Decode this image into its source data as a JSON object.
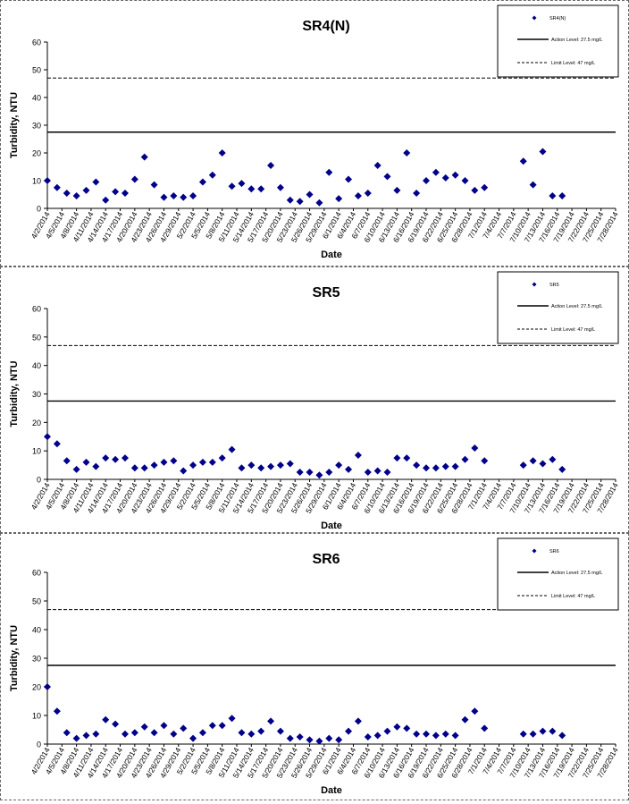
{
  "tick_dates": [
    "4/2/2014",
    "4/5/2014",
    "4/8/2014",
    "4/11/2014",
    "4/14/2014",
    "4/17/2014",
    "4/20/2014",
    "4/23/2014",
    "4/26/2014",
    "4/29/2014",
    "5/2/2014",
    "5/5/2014",
    "5/8/2014",
    "5/11/2014",
    "5/14/2014",
    "5/17/2014",
    "5/20/2014",
    "5/23/2014",
    "5/26/2014",
    "5/29/2014",
    "6/1/2014",
    "6/4/2014",
    "6/7/2014",
    "6/10/2014",
    "6/13/2014",
    "6/16/2014",
    "6/19/2014",
    "6/22/2014",
    "6/25/2014",
    "6/28/2014",
    "7/1/2014",
    "7/4/2014",
    "7/7/2014",
    "7/10/2014",
    "7/13/2014",
    "7/16/2014",
    "7/19/2014",
    "7/22/2014",
    "7/25/2014",
    "7/28/2014"
  ],
  "chart_data": [
    {
      "type": "scatter",
      "title": "SR4(N)",
      "xlabel": "Date",
      "ylabel": "Turbidity, NTU",
      "ylim": [
        0,
        60
      ],
      "yticks": [
        0,
        10,
        20,
        30,
        40,
        50,
        60
      ],
      "grid": false,
      "legend_position": "top-right",
      "legend": {
        "series": "SR4(N)",
        "action": "Action Level: 27.5 mg/L",
        "limit": "Limit Level: 47 mg/L"
      },
      "action_level": 27.5,
      "limit_level": 47,
      "series": [
        {
          "name": "SR4(N)",
          "color": "#00008b",
          "points": [
            [
              "4/2/2014",
              10
            ],
            [
              "4/4/2014",
              7.5
            ],
            [
              "4/6/2014",
              5.5
            ],
            [
              "4/8/2014",
              4.5
            ],
            [
              "4/10/2014",
              6.5
            ],
            [
              "4/12/2014",
              9.5
            ],
            [
              "4/14/2014",
              3
            ],
            [
              "4/16/2014",
              6
            ],
            [
              "4/18/2014",
              5.5
            ],
            [
              "4/20/2014",
              10.5
            ],
            [
              "4/22/2014",
              18.5
            ],
            [
              "4/24/2014",
              8.5
            ],
            [
              "4/26/2014",
              4
            ],
            [
              "4/28/2014",
              4.5
            ],
            [
              "4/30/2014",
              4
            ],
            [
              "5/2/2014",
              4.5
            ],
            [
              "5/4/2014",
              9.5
            ],
            [
              "5/6/2014",
              12
            ],
            [
              "5/8/2014",
              20
            ],
            [
              "5/10/2014",
              8
            ],
            [
              "5/12/2014",
              9
            ],
            [
              "5/14/2014",
              7
            ],
            [
              "5/16/2014",
              7
            ],
            [
              "5/18/2014",
              15.5
            ],
            [
              "5/20/2014",
              7.5
            ],
            [
              "5/22/2014",
              3
            ],
            [
              "5/24/2014",
              2.5
            ],
            [
              "5/26/2014",
              5
            ],
            [
              "5/28/2014",
              2
            ],
            [
              "5/30/2014",
              13
            ],
            [
              "6/1/2014",
              3.5
            ],
            [
              "6/3/2014",
              10.5
            ],
            [
              "6/5/2014",
              4.5
            ],
            [
              "6/7/2014",
              5.5
            ],
            [
              "6/9/2014",
              15.5
            ],
            [
              "6/11/2014",
              11.5
            ],
            [
              "6/13/2014",
              6.5
            ],
            [
              "6/15/2014",
              20
            ],
            [
              "6/17/2014",
              5.5
            ],
            [
              "6/19/2014",
              10
            ],
            [
              "6/21/2014",
              13
            ],
            [
              "6/23/2014",
              11
            ],
            [
              "6/25/2014",
              12
            ],
            [
              "6/27/2014",
              10
            ],
            [
              "6/29/2014",
              6.5
            ],
            [
              "7/1/2014",
              7.5
            ],
            [
              "7/9/2014",
              17
            ],
            [
              "7/11/2014",
              8.5
            ],
            [
              "7/13/2014",
              20.5
            ],
            [
              "7/15/2014",
              4.5
            ],
            [
              "7/17/2014",
              4.5
            ]
          ]
        }
      ]
    },
    {
      "type": "scatter",
      "title": "SR5",
      "xlabel": "Date",
      "ylabel": "Turbidity, NTU",
      "ylim": [
        0,
        60
      ],
      "yticks": [
        0,
        10,
        20,
        30,
        40,
        50,
        60
      ],
      "grid": false,
      "legend_position": "top-right",
      "legend": {
        "series": "SR5",
        "action": "Action Level: 27.5 mg/L",
        "limit": "Limit Level: 47 mg/L"
      },
      "action_level": 27.5,
      "limit_level": 47,
      "series": [
        {
          "name": "SR5",
          "color": "#00008b",
          "points": [
            [
              "4/2/2014",
              15
            ],
            [
              "4/4/2014",
              12.5
            ],
            [
              "4/6/2014",
              6.5
            ],
            [
              "4/8/2014",
              3.5
            ],
            [
              "4/10/2014",
              6
            ],
            [
              "4/12/2014",
              4.5
            ],
            [
              "4/14/2014",
              7.5
            ],
            [
              "4/16/2014",
              7
            ],
            [
              "4/18/2014",
              7.5
            ],
            [
              "4/20/2014",
              4
            ],
            [
              "4/22/2014",
              4
            ],
            [
              "4/24/2014",
              5
            ],
            [
              "4/26/2014",
              6
            ],
            [
              "4/28/2014",
              6.5
            ],
            [
              "4/30/2014",
              3
            ],
            [
              "5/2/2014",
              5
            ],
            [
              "5/4/2014",
              6
            ],
            [
              "5/6/2014",
              6
            ],
            [
              "5/8/2014",
              7.5
            ],
            [
              "5/10/2014",
              10.5
            ],
            [
              "5/12/2014",
              4
            ],
            [
              "5/14/2014",
              5
            ],
            [
              "5/16/2014",
              4
            ],
            [
              "5/18/2014",
              4.5
            ],
            [
              "5/20/2014",
              5
            ],
            [
              "5/22/2014",
              5.5
            ],
            [
              "5/24/2014",
              2.5
            ],
            [
              "5/26/2014",
              2.5
            ],
            [
              "5/28/2014",
              1.5
            ],
            [
              "5/30/2014",
              2.5
            ],
            [
              "6/1/2014",
              5
            ],
            [
              "6/3/2014",
              3.5
            ],
            [
              "6/5/2014",
              8.5
            ],
            [
              "6/7/2014",
              2.5
            ],
            [
              "6/9/2014",
              3
            ],
            [
              "6/11/2014",
              2.5
            ],
            [
              "6/13/2014",
              7.5
            ],
            [
              "6/15/2014",
              7.5
            ],
            [
              "6/17/2014",
              5
            ],
            [
              "6/19/2014",
              4
            ],
            [
              "6/21/2014",
              4
            ],
            [
              "6/23/2014",
              4.5
            ],
            [
              "6/25/2014",
              4.5
            ],
            [
              "6/27/2014",
              7
            ],
            [
              "6/29/2014",
              11
            ],
            [
              "7/1/2014",
              6.5
            ],
            [
              "7/9/2014",
              5
            ],
            [
              "7/11/2014",
              6.5
            ],
            [
              "7/13/2014",
              5.5
            ],
            [
              "7/15/2014",
              7
            ],
            [
              "7/17/2014",
              3.5
            ]
          ]
        }
      ]
    },
    {
      "type": "scatter",
      "title": "SR6",
      "xlabel": "Date",
      "ylabel": "Turbidity, NTU",
      "ylim": [
        0,
        60
      ],
      "yticks": [
        0,
        10,
        20,
        30,
        40,
        50,
        60
      ],
      "grid": false,
      "legend_position": "top-right",
      "legend": {
        "series": "SR6",
        "action": "Action Level: 27.5 mg/L",
        "limit": "Limit Level: 47 mg/L"
      },
      "action_level": 27.5,
      "limit_level": 47,
      "series": [
        {
          "name": "SR6",
          "color": "#00008b",
          "points": [
            [
              "4/2/2014",
              20
            ],
            [
              "4/4/2014",
              11.5
            ],
            [
              "4/6/2014",
              4
            ],
            [
              "4/8/2014",
              2
            ],
            [
              "4/10/2014",
              3
            ],
            [
              "4/12/2014",
              3.5
            ],
            [
              "4/14/2014",
              8.5
            ],
            [
              "4/16/2014",
              7
            ],
            [
              "4/18/2014",
              3.5
            ],
            [
              "4/20/2014",
              4
            ],
            [
              "4/22/2014",
              6
            ],
            [
              "4/24/2014",
              4
            ],
            [
              "4/26/2014",
              6.5
            ],
            [
              "4/28/2014",
              3.5
            ],
            [
              "4/30/2014",
              5.5
            ],
            [
              "5/2/2014",
              2
            ],
            [
              "5/4/2014",
              4
            ],
            [
              "5/6/2014",
              6.5
            ],
            [
              "5/8/2014",
              6.5
            ],
            [
              "5/10/2014",
              9
            ],
            [
              "5/12/2014",
              4
            ],
            [
              "5/14/2014",
              3.5
            ],
            [
              "5/16/2014",
              4.5
            ],
            [
              "5/18/2014",
              8
            ],
            [
              "5/20/2014",
              4.5
            ],
            [
              "5/22/2014",
              2
            ],
            [
              "5/24/2014",
              2.5
            ],
            [
              "5/26/2014",
              1.5
            ],
            [
              "5/28/2014",
              1
            ],
            [
              "5/30/2014",
              2
            ],
            [
              "6/1/2014",
              1.5
            ],
            [
              "6/3/2014",
              4.5
            ],
            [
              "6/5/2014",
              8
            ],
            [
              "6/7/2014",
              2.5
            ],
            [
              "6/9/2014",
              3
            ],
            [
              "6/11/2014",
              4.5
            ],
            [
              "6/13/2014",
              6
            ],
            [
              "6/15/2014",
              5.5
            ],
            [
              "6/17/2014",
              3.5
            ],
            [
              "6/19/2014",
              3.5
            ],
            [
              "6/21/2014",
              3
            ],
            [
              "6/23/2014",
              3.5
            ],
            [
              "6/25/2014",
              3
            ],
            [
              "6/27/2014",
              8.5
            ],
            [
              "6/29/2014",
              11.5
            ],
            [
              "7/1/2014",
              5.5
            ],
            [
              "7/9/2014",
              3.5
            ],
            [
              "7/11/2014",
              3.5
            ],
            [
              "7/13/2014",
              4.5
            ],
            [
              "7/15/2014",
              4.5
            ],
            [
              "7/17/2014",
              3
            ]
          ]
        }
      ]
    }
  ]
}
